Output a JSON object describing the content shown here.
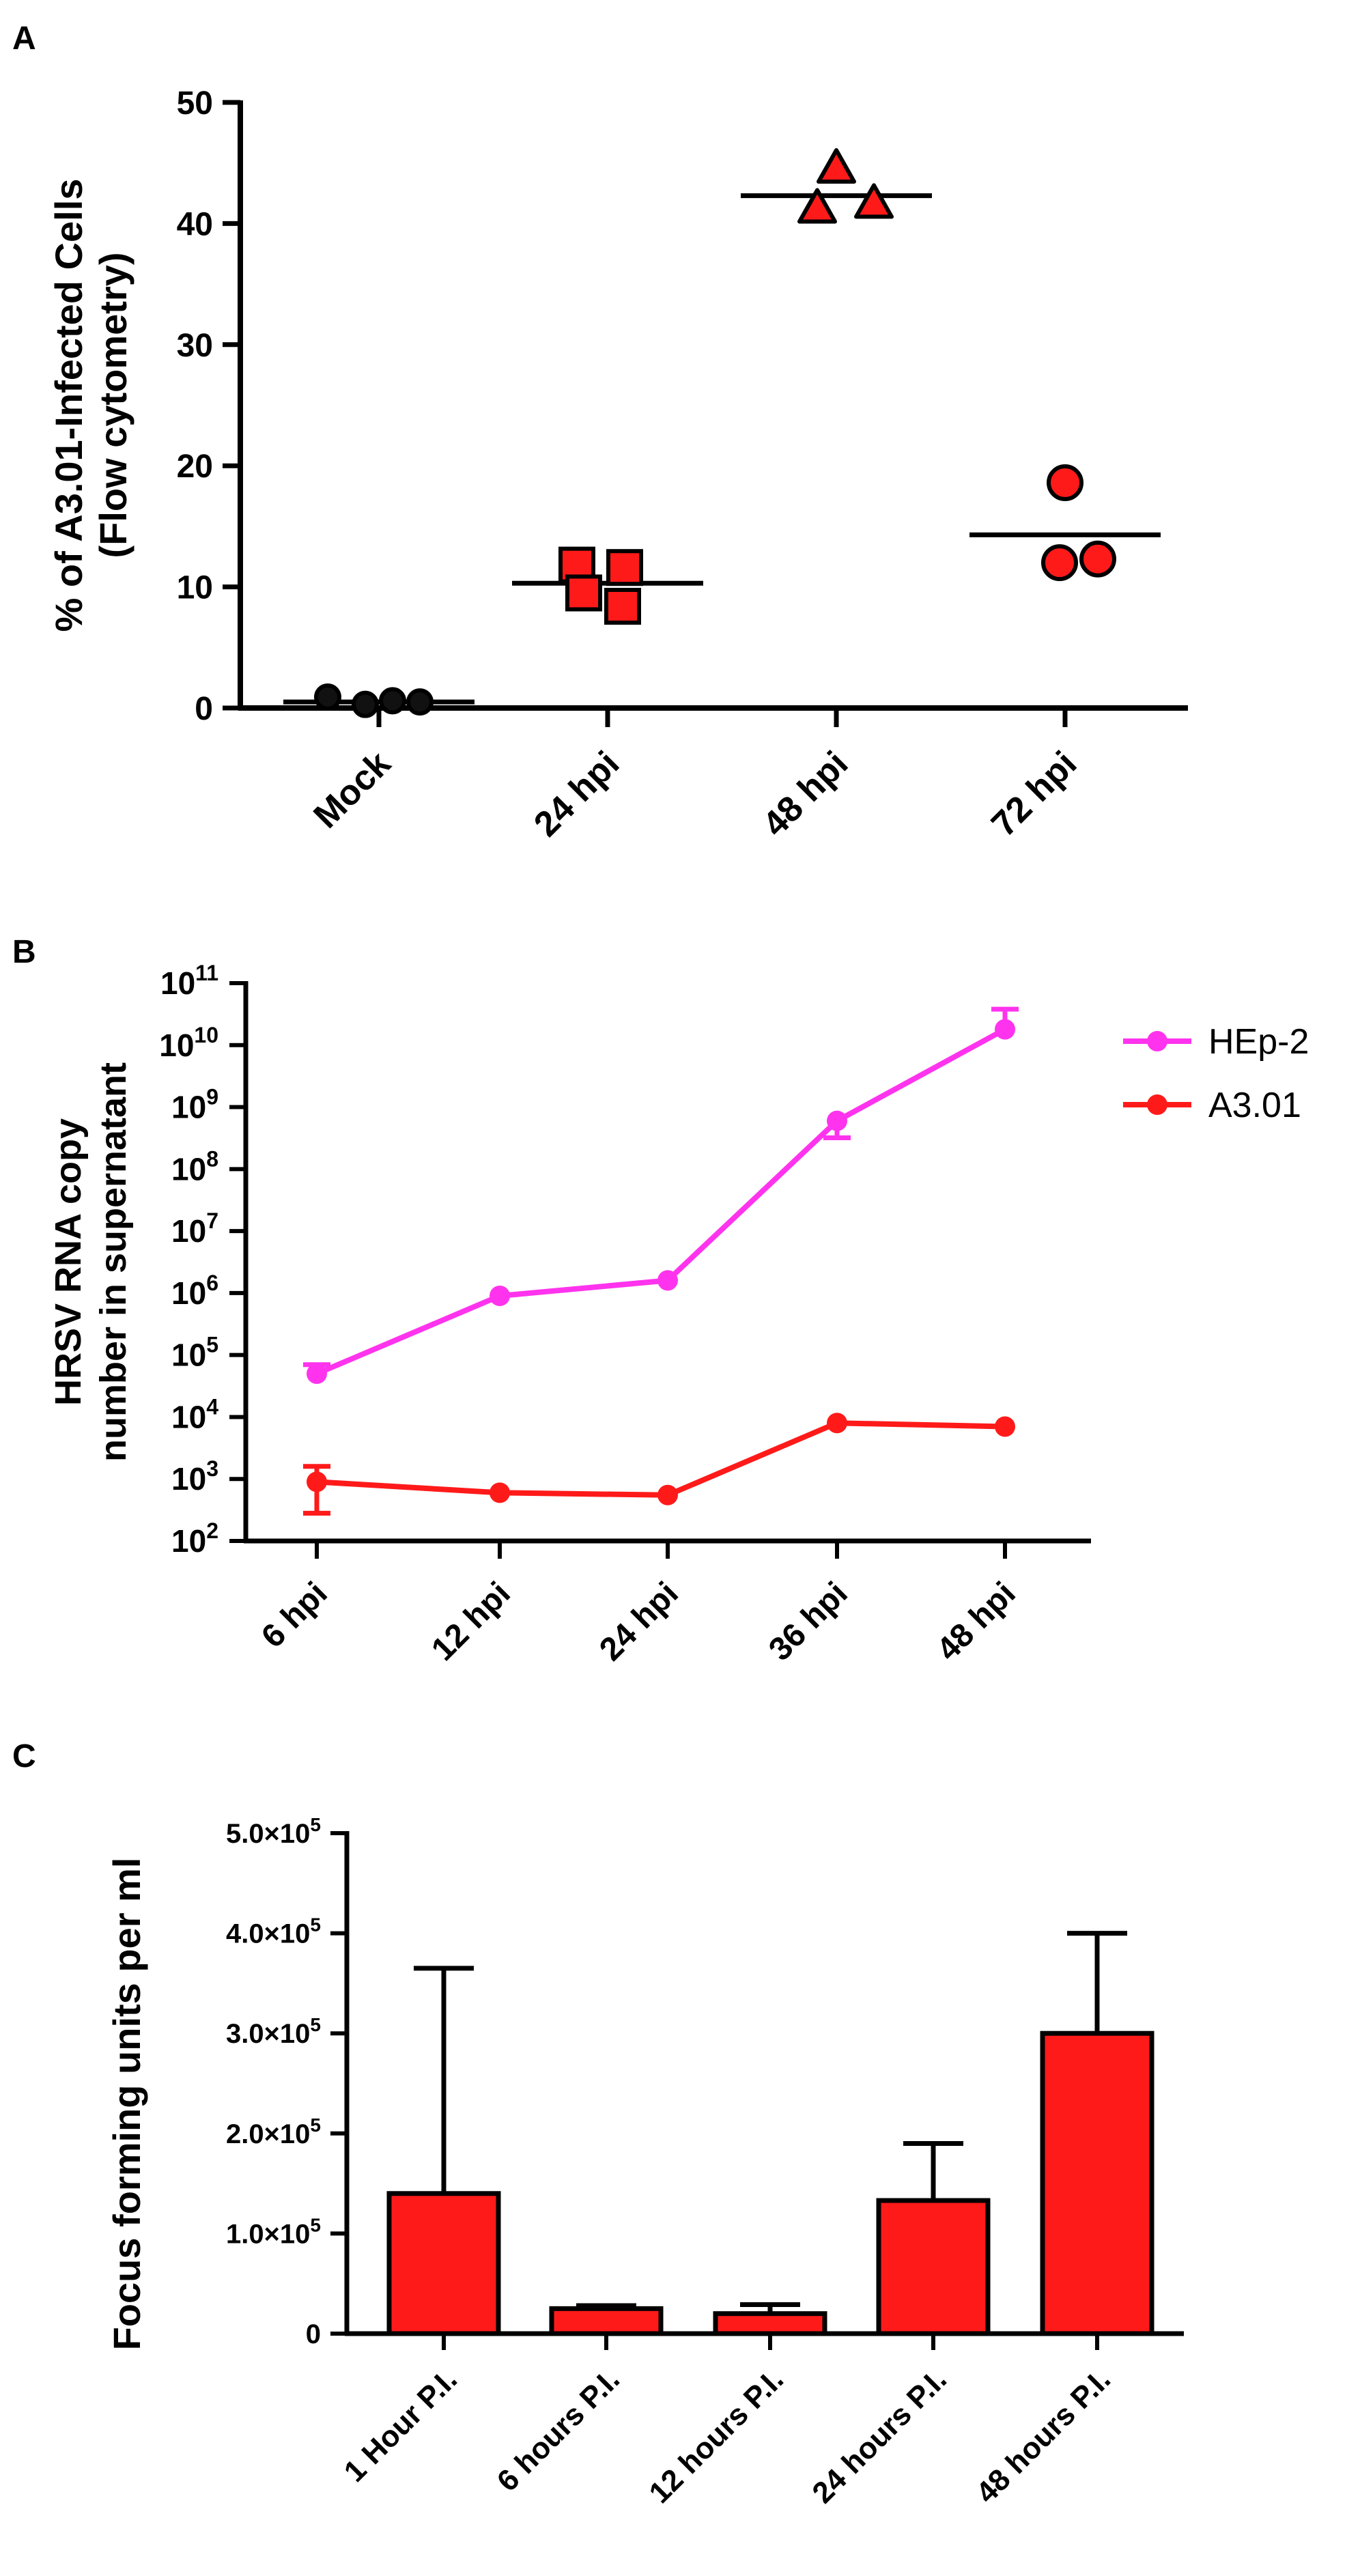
{
  "chart_data": [
    {
      "panel": "A",
      "type": "scatter",
      "title": "",
      "ylabel_line1": "% of A3.01-Infected Cells",
      "ylabel_line2": "(Flow cytometry)",
      "xlabel": "",
      "ylim": [
        0,
        50
      ],
      "yticks": [
        "0",
        "10",
        "20",
        "30",
        "40",
        "50"
      ],
      "categories": [
        "Mock",
        "24 hpi",
        "48 hpi",
        "72 hpi"
      ],
      "series": [
        {
          "name": "Mock",
          "marker": "circle",
          "color": "#111111",
          "values": [
            0.9,
            0.3,
            0.6,
            0.5
          ],
          "mean": 0.5
        },
        {
          "name": "24 hpi",
          "marker": "square",
          "color": "#ff1a1a",
          "values": [
            11.8,
            11.6,
            8.4,
            9.5
          ],
          "mean": 10.3
        },
        {
          "name": "48 hpi",
          "marker": "triangle",
          "color": "#ff1a1a",
          "values": [
            44.5,
            41.2,
            41.6
          ],
          "mean": 42.3
        },
        {
          "name": "72 hpi",
          "marker": "circle",
          "color": "#ff1a1a",
          "values": [
            18.6,
            12.0,
            12.3
          ],
          "mean": 14.3
        }
      ]
    },
    {
      "panel": "B",
      "type": "line",
      "title": "",
      "ylabel_line1": "HRSV RNA copy",
      "ylabel_line2": "number in supernatant",
      "xlabel": "",
      "yscale": "log10",
      "ylim_exp": [
        2,
        11
      ],
      "ytick_exps": [
        "2",
        "3",
        "4",
        "5",
        "6",
        "7",
        "8",
        "9",
        "10",
        "11"
      ],
      "ytick_base": "10",
      "categories": [
        "6 hpi",
        "12 hpi",
        "24 hpi",
        "36 hpi",
        "48 hpi"
      ],
      "legend_position": "top-right",
      "series": [
        {
          "name": "HEp-2",
          "color": "#ff33ee",
          "values": [
            50000,
            900000,
            1600000,
            600000000,
            18000000000
          ],
          "err_lo": [
            null,
            null,
            null,
            320000000,
            null
          ],
          "err_hi": [
            70000,
            null,
            null,
            null,
            38000000000
          ]
        },
        {
          "name": "A3.01",
          "color": "#ff1a1a",
          "values": [
            900,
            600,
            550,
            8000,
            7000
          ],
          "err_lo": [
            280,
            null,
            null,
            null,
            null
          ],
          "err_hi": [
            1600,
            null,
            null,
            null,
            null
          ]
        }
      ]
    },
    {
      "panel": "C",
      "type": "bar",
      "title": "",
      "ylabel": "Focus forming units per ml",
      "xlabel": "",
      "ylim": [
        0,
        500000
      ],
      "yticks": [
        {
          "main": "0",
          "exp": ""
        },
        {
          "main": "1.0×10",
          "exp": "5"
        },
        {
          "main": "2.0×10",
          "exp": "5"
        },
        {
          "main": "3.0×10",
          "exp": "5"
        },
        {
          "main": "4.0×10",
          "exp": "5"
        },
        {
          "main": "5.0×10",
          "exp": "5"
        }
      ],
      "categories": [
        "1 Hour P.I.",
        "6 hours P.I.",
        "12 hours P.I.",
        "24 hours P.I.",
        "48 hours P.I."
      ],
      "values": [
        140000,
        25000,
        20000,
        133000,
        300000
      ],
      "err_hi": [
        365000,
        28000,
        29000,
        190000,
        400000
      ],
      "color": "#ff1a1a"
    }
  ],
  "panel_labels": {
    "a": "A",
    "b": "B",
    "c": "C"
  }
}
